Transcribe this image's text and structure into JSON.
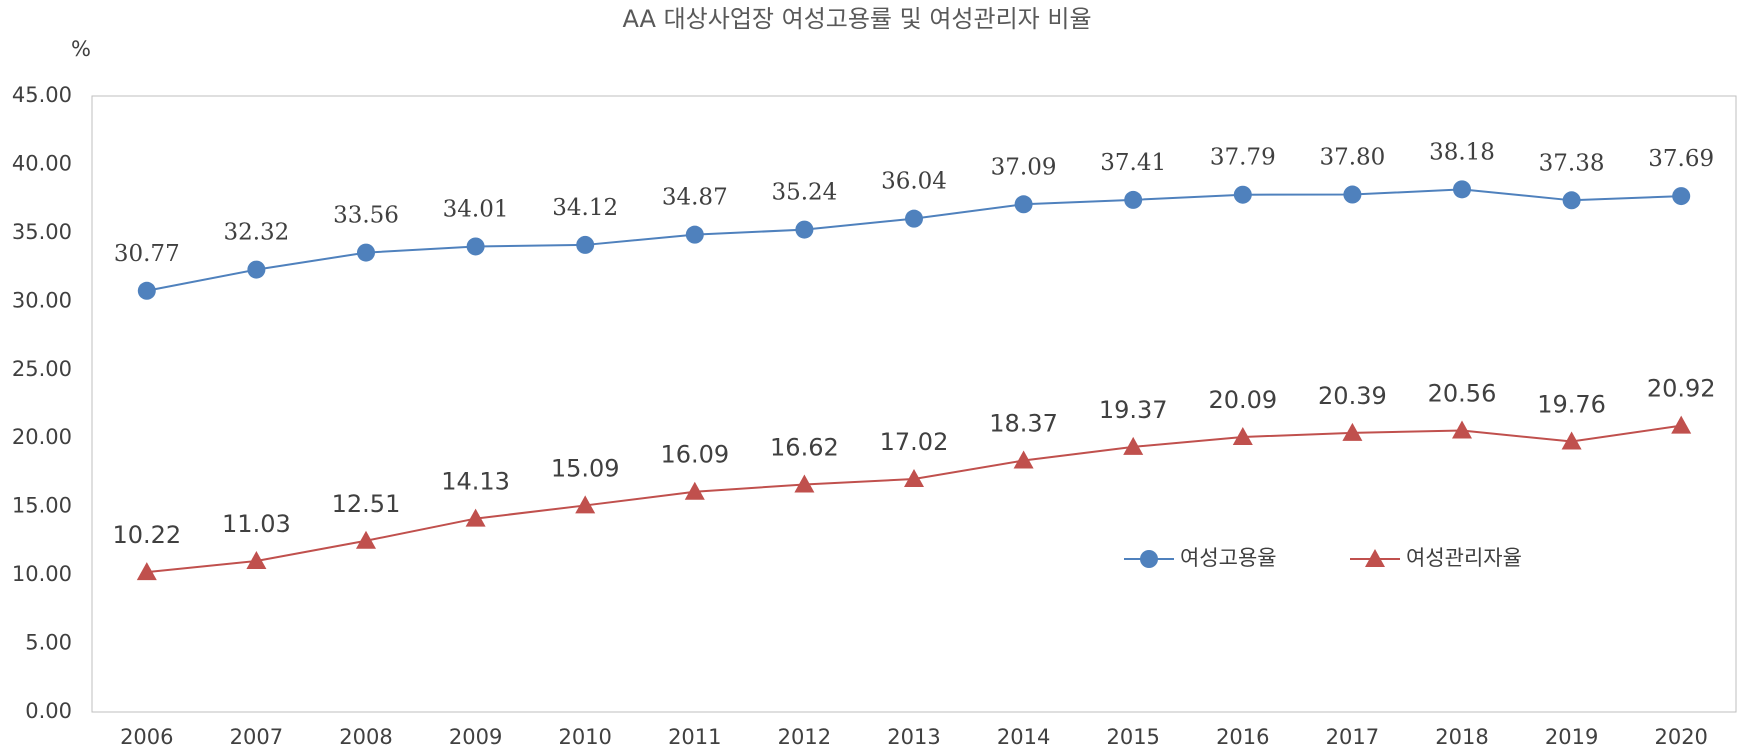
{
  "chart_data": {
    "type": "line",
    "title": "AA 대상사업장 여성고용률 및 여성관리자 비율",
    "y_label": "%",
    "categories": [
      "2006",
      "2007",
      "2008",
      "2009",
      "2010",
      "2011",
      "2012",
      "2013",
      "2014",
      "2015",
      "2016",
      "2017",
      "2018",
      "2019",
      "2020"
    ],
    "series": [
      {
        "name": "여성고용율",
        "color": "#4f81bd",
        "marker": "circle",
        "values": [
          30.77,
          32.32,
          33.56,
          34.01,
          34.12,
          34.87,
          35.24,
          36.04,
          37.09,
          37.41,
          37.79,
          37.8,
          38.18,
          37.38,
          37.69
        ],
        "value_labels": [
          "30.77",
          "32.32",
          "33.56",
          "34.01",
          "34.12",
          "34.87",
          "35.24",
          "36.04",
          "37.09",
          "37.41",
          "37.79",
          "37.80",
          "38.18",
          "37.38",
          "37.69"
        ]
      },
      {
        "name": "여성관리자율",
        "color": "#c0504d",
        "marker": "triangle",
        "values": [
          10.22,
          11.03,
          12.51,
          14.13,
          15.09,
          16.09,
          16.62,
          17.02,
          18.37,
          19.37,
          20.09,
          20.39,
          20.56,
          19.76,
          20.92
        ],
        "value_labels": [
          "10.22",
          "11.03",
          "12.51",
          "14.13",
          "15.09",
          "16.09",
          "16.62",
          "17.02",
          "18.37",
          "19.37",
          "20.09",
          "20.39",
          "20.56",
          "19.76",
          "20.92"
        ]
      }
    ],
    "ylim": [
      0,
      45
    ],
    "yticks": [
      {
        "value": 0,
        "label": "0.00"
      },
      {
        "value": 5,
        "label": "5.00"
      },
      {
        "value": 10,
        "label": "10.00"
      },
      {
        "value": 15,
        "label": "15.00"
      },
      {
        "value": 20,
        "label": "20.00"
      },
      {
        "value": 25,
        "label": "25.00"
      },
      {
        "value": 30,
        "label": "30.00"
      },
      {
        "value": 35,
        "label": "35.00"
      },
      {
        "value": 40,
        "label": "40.00"
      },
      {
        "value": 45,
        "label": "45.00"
      }
    ],
    "grid": false
  }
}
